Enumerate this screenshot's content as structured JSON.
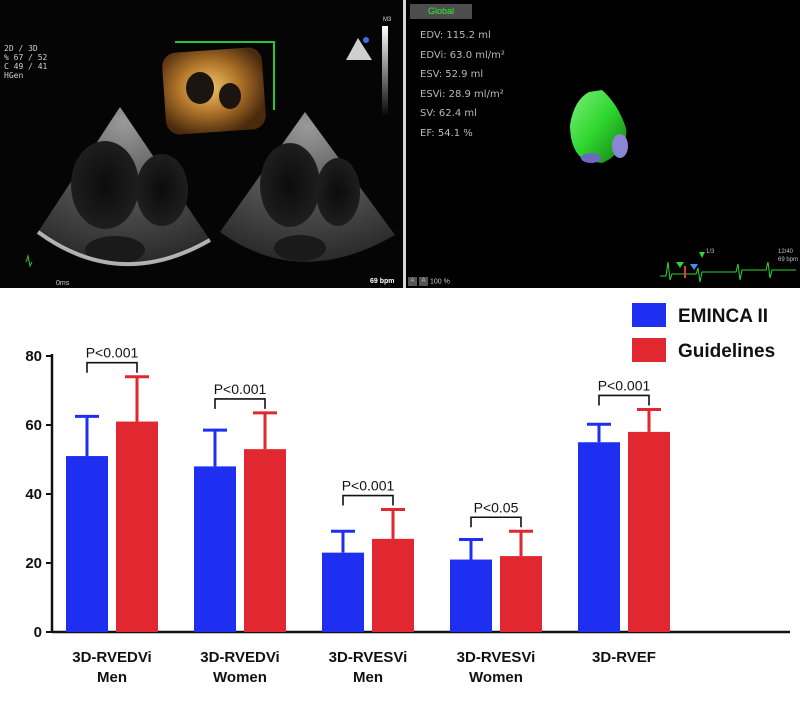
{
  "echo": {
    "settings": [
      "2D / 3D",
      "% 67 / 52",
      "C  49 / 41",
      "HGen"
    ],
    "time": "0ms",
    "heart_rate": "69 bpm",
    "probe_mode": "M3"
  },
  "volumetric": {
    "tab": "Global",
    "metrics": [
      "EDV: 115.2 ml",
      "EDVi: 63.0 ml/m²",
      "ESV: 52.9 ml",
      "ESVi: 28.9 ml/m²",
      "SV: 62.4 ml",
      "EF: 54.1 %"
    ],
    "frame": "1/3",
    "frame_total": "12/40",
    "frame_bpm": "69 bpm",
    "zoom": "100 %",
    "zoom_buttons": [
      "A",
      "A"
    ]
  },
  "colors": {
    "eminca": "#1f2ff2",
    "guidelines": "#e1272f",
    "model_green": "#2fd62f"
  },
  "chart_data": {
    "type": "bar",
    "categories": [
      [
        "3D-RVEDVi",
        "Men"
      ],
      [
        "3D-RVEDVi",
        "Women"
      ],
      [
        "3D-RVESVi",
        "Men"
      ],
      [
        "3D-RVESVi",
        "Women"
      ],
      [
        "3D-RVEF",
        ""
      ]
    ],
    "series": [
      {
        "name": "EMINCA II",
        "color": "#1f2ff2",
        "values": [
          51,
          48,
          23,
          21,
          55
        ],
        "errors": [
          11.5,
          10.5,
          6.2,
          5.8,
          5.2
        ]
      },
      {
        "name": "Guidelines",
        "color": "#e1272f",
        "values": [
          61,
          53,
          27,
          22,
          58
        ],
        "errors": [
          13,
          10.5,
          8.5,
          7.2,
          6.5
        ]
      }
    ],
    "annotations": [
      "P<0.001",
      "P<0.001",
      "P<0.001",
      "P<0.05",
      "P<0.001"
    ],
    "yticks": [
      0,
      20,
      40,
      60,
      80
    ],
    "ylim": [
      0,
      80
    ],
    "legend_position": "top-right",
    "grid": false
  }
}
